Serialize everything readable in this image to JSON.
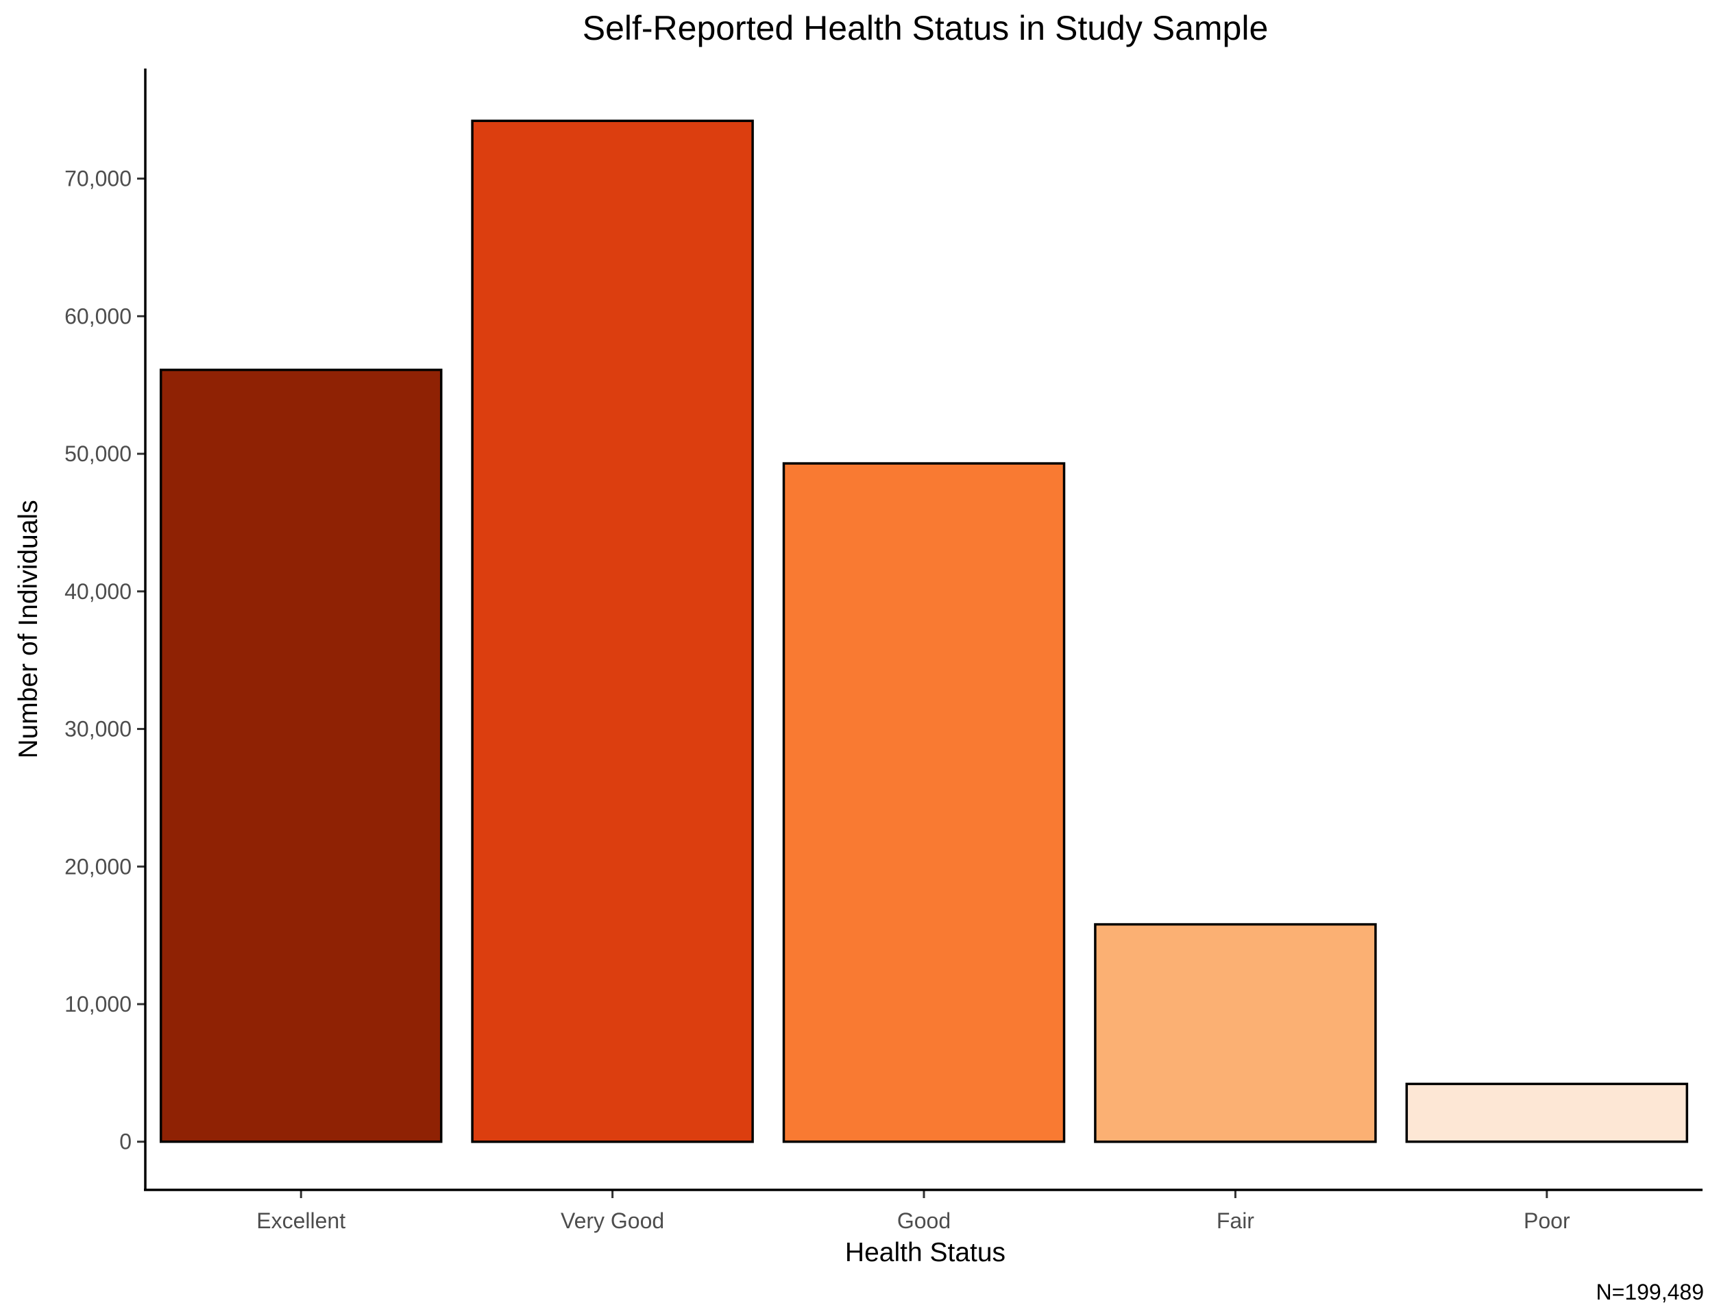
{
  "chart_data": {
    "type": "bar",
    "title": "Self-Reported Health Status in Study Sample",
    "xlabel": "Health Status",
    "ylabel": "Number of Individuals",
    "caption": "N=199,489",
    "categories": [
      "Excellent",
      "Very Good",
      "Good",
      "Fair",
      "Poor"
    ],
    "values": [
      56100,
      74200,
      49300,
      15800,
      4200
    ],
    "colors": [
      "#8f2204",
      "#dc3e0f",
      "#f97a32",
      "#fbb073",
      "#fde7d5"
    ],
    "y_ticks": [
      0,
      10000,
      20000,
      30000,
      40000,
      50000,
      60000,
      70000
    ],
    "y_tick_labels": [
      "0",
      "10,000",
      "20,000",
      "30,000",
      "40,000",
      "50,000",
      "60,000",
      "70,000"
    ],
    "ylim": [
      -3500,
      78000
    ],
    "grid": false,
    "legend": "none"
  }
}
